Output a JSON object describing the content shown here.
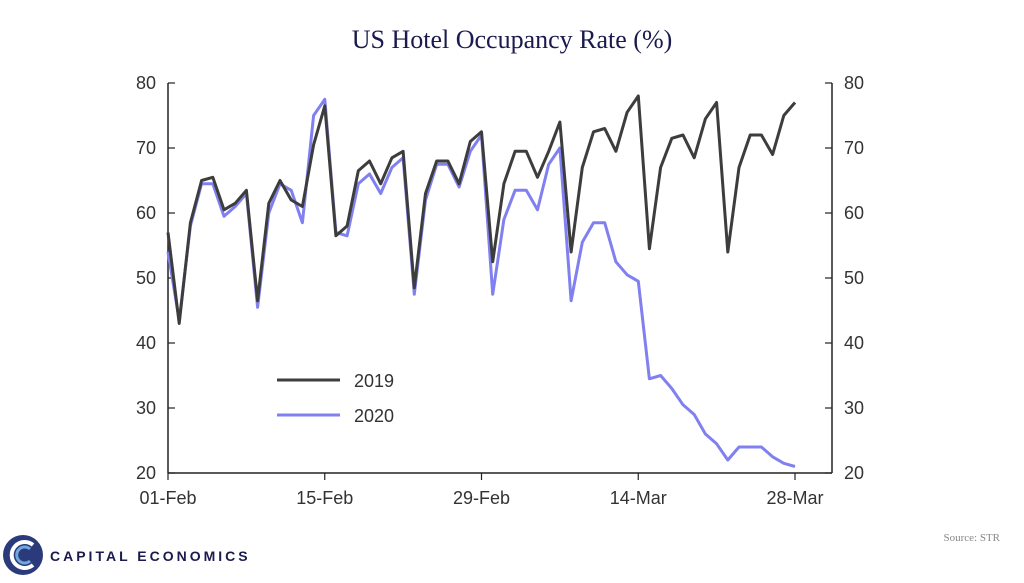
{
  "chart_data": {
    "type": "line",
    "title": "US Hotel Occupancy Rate (%)",
    "xlabel": "",
    "ylabel": "",
    "ylim": [
      20,
      80
    ],
    "yticks": [
      "20",
      "30",
      "40",
      "50",
      "60",
      "70",
      "80"
    ],
    "xticks": [
      {
        "label": "01-Feb",
        "day": 0
      },
      {
        "label": "15-Feb",
        "day": 14
      },
      {
        "label": "29-Feb",
        "day": 28
      },
      {
        "label": "14-Mar",
        "day": 42
      },
      {
        "label": "28-Mar",
        "day": 56
      }
    ],
    "legend_position": "center-left",
    "series": [
      {
        "name": "2019",
        "color": "#3d3d3d",
        "values": [
          57,
          43,
          58.5,
          65,
          65.5,
          60.5,
          61.5,
          63.5,
          46.5,
          61.5,
          65,
          62,
          61,
          70.5,
          76.5,
          56.5,
          58,
          66.5,
          68,
          64.5,
          68.5,
          69.5,
          48.5,
          63,
          68,
          68,
          64.5,
          71,
          72.5,
          52.5,
          64.5,
          69.5,
          69.5,
          65.5,
          69.5,
          74,
          54,
          67,
          72.5,
          73,
          69.5,
          75.5,
          78,
          54.5,
          67,
          71.5,
          72,
          68.5,
          74.5,
          77,
          54,
          67,
          72,
          72,
          69,
          75,
          77
        ]
      },
      {
        "name": "2020",
        "color": "#8080f0",
        "values": [
          54,
          43.5,
          58,
          64.5,
          64.5,
          59.5,
          61,
          63,
          45.5,
          60,
          64.5,
          63.5,
          58.5,
          75,
          77.5,
          57,
          56.5,
          64.5,
          66,
          63,
          67,
          68.5,
          47.5,
          62,
          67.5,
          67.5,
          64,
          69.5,
          72,
          47.5,
          59,
          63.5,
          63.5,
          60.5,
          67.5,
          70,
          46.5,
          55.5,
          58.5,
          58.5,
          52.5,
          50.5,
          49.5,
          34.5,
          35,
          33,
          30.5,
          29,
          26,
          24.5,
          22,
          24,
          24,
          24,
          22.5,
          21.5,
          21
        ]
      }
    ]
  },
  "source_text": "Source: STR",
  "brand": {
    "name": "CAPITAL ECONOMICS",
    "logo_icon": "capital-economics-logo-icon",
    "logo_color": "#2b3a7a",
    "accent_color": "#6fa8dc"
  }
}
